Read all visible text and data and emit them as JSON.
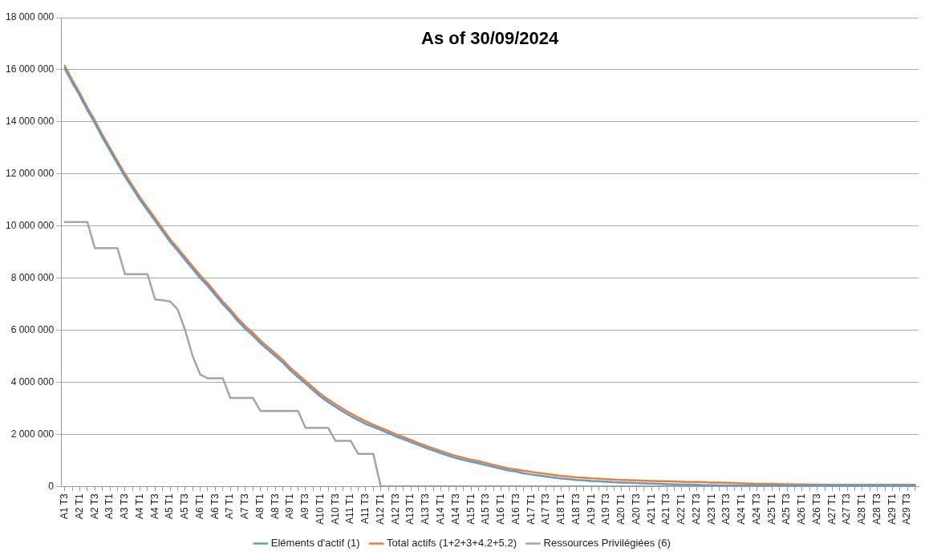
{
  "chart_data": {
    "type": "line",
    "title": "As of 30/09/2024",
    "categories": [
      "A1 T3",
      null,
      "A2 T1",
      null,
      "A2 T3",
      null,
      "A3 T1",
      null,
      "A3 T3",
      null,
      "A4 T1",
      null,
      "A4 T3",
      null,
      "A5 T1",
      null,
      "A5 T3",
      null,
      "A6 T1",
      null,
      "A6 T3",
      null,
      "A7 T1",
      null,
      "A7 T3",
      null,
      "A8 T1",
      null,
      "A8 T3",
      null,
      "A9 T1",
      null,
      "A9 T3",
      null,
      "A10 T1",
      null,
      "A10 T3",
      null,
      "A11 T1",
      null,
      "A11 T3",
      null,
      "A12 T1",
      null,
      "A12 T3",
      null,
      "A13 T1",
      null,
      "A13 T3",
      null,
      "A14 T1",
      null,
      "A14 T3",
      null,
      "A15 T1",
      null,
      "A15 T3",
      null,
      "A16 T1",
      null,
      "A16 T3",
      null,
      "A17 T1",
      null,
      "A17 T3",
      null,
      "A18 T1",
      null,
      "A18 T3",
      null,
      "A19 T1",
      null,
      "A19 T3",
      null,
      "A20 T1",
      null,
      "A20 T3",
      null,
      "A21 T1",
      null,
      "A21 T3",
      null,
      "A22 T1",
      null,
      "A22 T3",
      null,
      "A23 T1",
      null,
      "A23 T3",
      null,
      "A24 T1",
      null,
      "A24 T3",
      null,
      "A25 T1",
      null,
      "A25 T3",
      null,
      "A26 T1",
      null,
      "A26 T3",
      null,
      "A27 T1",
      null,
      "A27 T3",
      null,
      "A28 T1",
      null,
      "A28 T3",
      null,
      "A29 T1",
      null,
      "A29 T3",
      null
    ],
    "series": [
      {
        "name": "Eléments d'actif (1)",
        "color": "#5b9bd5",
        "values": [
          16050000,
          15500000,
          15000000,
          14450000,
          13950000,
          13400000,
          12900000,
          12400000,
          11900000,
          11450000,
          11000000,
          10600000,
          10200000,
          9800000,
          9400000,
          9050000,
          8700000,
          8350000,
          8000000,
          7700000,
          7350000,
          7000000,
          6700000,
          6350000,
          6050000,
          5800000,
          5500000,
          5250000,
          5000000,
          4750000,
          4450000,
          4200000,
          3950000,
          3700000,
          3450000,
          3240000,
          3050000,
          2870000,
          2700000,
          2550000,
          2400000,
          2290000,
          2170000,
          2050000,
          1920000,
          1820000,
          1700000,
          1590000,
          1480000,
          1380000,
          1280000,
          1180000,
          1090000,
          1020000,
          950000,
          890000,
          820000,
          750000,
          680000,
          610000,
          570000,
          500000,
          460000,
          420000,
          380000,
          340000,
          300000,
          280000,
          250000,
          230000,
          210000,
          200000,
          180000,
          160000,
          150000,
          140000,
          130000,
          120000,
          110000,
          100000,
          90000,
          80000,
          70000,
          70000,
          60000,
          50000,
          50000,
          40000,
          40000,
          40000,
          30000,
          30000,
          30000,
          30000,
          30000,
          30000,
          30000,
          30000,
          30000,
          30000,
          30000,
          30000,
          30000,
          30000,
          30000,
          30000,
          30000,
          30000,
          30000,
          30000,
          30000,
          30000,
          30000,
          30000
        ]
      },
      {
        "name": "Total actifs (1+2+3+4.2+5.2)",
        "color": "#ed7d31",
        "values": [
          16150000,
          15600000,
          15100000,
          14550000,
          14050000,
          13500000,
          13000000,
          12500000,
          12000000,
          11550000,
          11100000,
          10700000,
          10300000,
          9900000,
          9500000,
          9150000,
          8800000,
          8450000,
          8100000,
          7800000,
          7450000,
          7100000,
          6800000,
          6450000,
          6150000,
          5900000,
          5600000,
          5350000,
          5100000,
          4850000,
          4550000,
          4300000,
          4050000,
          3800000,
          3550000,
          3340000,
          3150000,
          2970000,
          2800000,
          2650000,
          2500000,
          2370000,
          2250000,
          2130000,
          2000000,
          1900000,
          1780000,
          1670000,
          1560000,
          1460000,
          1360000,
          1260000,
          1170000,
          1100000,
          1030000,
          970000,
          900000,
          830000,
          760000,
          690000,
          650000,
          600000,
          560000,
          520000,
          480000,
          440000,
          400000,
          380000,
          350000,
          330000,
          310000,
          300000,
          280000,
          260000,
          250000,
          240000,
          230000,
          220000,
          210000,
          200000,
          200000,
          190000,
          180000,
          170000,
          170000,
          160000,
          150000,
          150000,
          140000,
          130000,
          120000,
          110000,
          100000,
          100000,
          100000,
          90000,
          90000,
          80000,
          80000,
          70000,
          70000,
          60000,
          60000,
          60000,
          60000,
          60000,
          60000,
          60000,
          60000,
          60000,
          60000,
          60000,
          60000,
          60000
        ]
      },
      {
        "name": "Ressources Privilégiées (6)",
        "color": "#a5a5a5",
        "values": [
          10150000,
          10150000,
          10150000,
          10150000,
          9150000,
          9150000,
          9150000,
          9150000,
          8150000,
          8150000,
          8150000,
          8150000,
          7180000,
          7150000,
          7100000,
          6800000,
          6000000,
          5000000,
          4300000,
          4150000,
          4150000,
          4150000,
          3400000,
          3400000,
          3400000,
          3400000,
          2900000,
          2900000,
          2900000,
          2900000,
          2900000,
          2900000,
          2250000,
          2250000,
          2250000,
          2250000,
          1750000,
          1750000,
          1750000,
          1250000,
          1250000,
          1250000,
          0,
          0,
          0,
          0,
          0,
          0,
          0,
          0,
          0,
          0,
          0,
          0,
          0,
          0,
          0,
          0,
          0,
          0,
          0,
          0,
          0,
          0,
          0,
          0,
          0,
          0,
          0,
          0,
          0,
          0,
          0,
          0,
          0,
          0,
          0,
          0,
          0,
          0,
          0,
          0,
          0,
          0,
          0,
          0,
          0,
          0,
          0,
          0,
          0,
          0,
          0,
          0,
          0,
          0,
          0,
          0,
          0,
          0,
          0,
          0,
          0,
          0,
          0,
          0,
          0,
          0,
          0,
          0,
          0,
          0,
          0,
          0
        ]
      }
    ],
    "ylim": [
      0,
      18000000
    ],
    "yticks": [
      {
        "value": 0,
        "label": "0"
      },
      {
        "value": 2000000,
        "label": "2 000 000"
      },
      {
        "value": 4000000,
        "label": "4 000 000"
      },
      {
        "value": 6000000,
        "label": "6 000 000"
      },
      {
        "value": 8000000,
        "label": "8 000 000"
      },
      {
        "value": 10000000,
        "label": "10 000 000"
      },
      {
        "value": 12000000,
        "label": "12 000 000"
      },
      {
        "value": 14000000,
        "label": "14 000 000"
      },
      {
        "value": 16000000,
        "label": "16 000 000"
      },
      {
        "value": 18000000,
        "label": "18 000 000"
      }
    ],
    "grid": "y",
    "legend": "bottom",
    "marker": "none",
    "line_style": "solid"
  }
}
